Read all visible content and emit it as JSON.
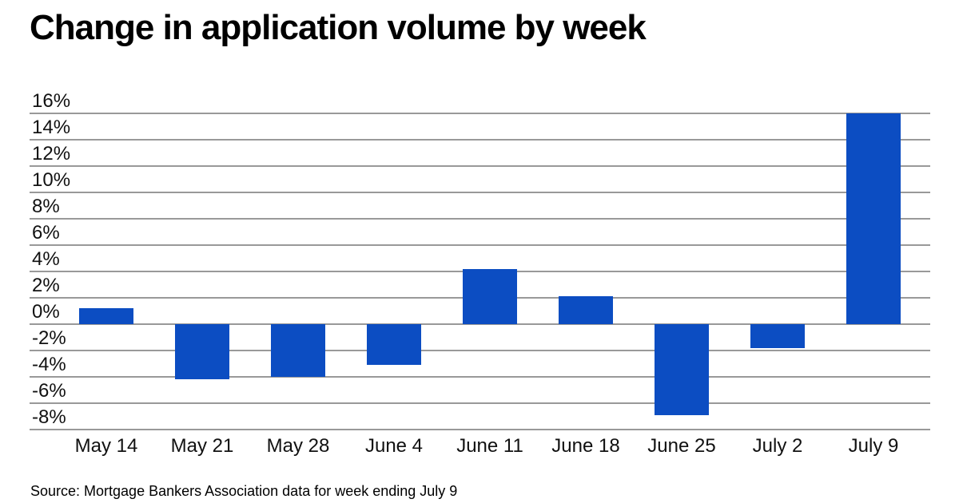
{
  "title": "Change in application volume by week",
  "source": "Source: Mortgage Bankers Association data for week ending July 9",
  "colors": {
    "bar": "#0c4dc2",
    "gridline": "#999999",
    "text": "#111111",
    "title_text": "#000000",
    "background": "#ffffff"
  },
  "chart_data": {
    "type": "bar",
    "title": "Change in application volume by week",
    "categories": [
      "May 14",
      "May 21",
      "May 28",
      "June 4",
      "June 11",
      "June 18",
      "June 25",
      "July 2",
      "July 9"
    ],
    "values": [
      1.2,
      -4.2,
      -4.0,
      -3.1,
      4.2,
      2.1,
      -6.9,
      -1.8,
      16.0
    ],
    "unit": "%",
    "xlabel": "",
    "ylabel": "",
    "ylim": [
      -8,
      16
    ],
    "y_ticks": [
      16,
      14,
      12,
      10,
      8,
      6,
      4,
      2,
      0,
      -2,
      -4,
      -6,
      -8
    ],
    "y_tick_labels": [
      "16%",
      "14%",
      "12%",
      "10%",
      "8%",
      "6%",
      "4%",
      "2%",
      "0%",
      "-2%",
      "-4%",
      "-6%",
      "-8%"
    ],
    "grid": "horizontal",
    "legend": "none",
    "bar_color": "#0c4dc2"
  }
}
